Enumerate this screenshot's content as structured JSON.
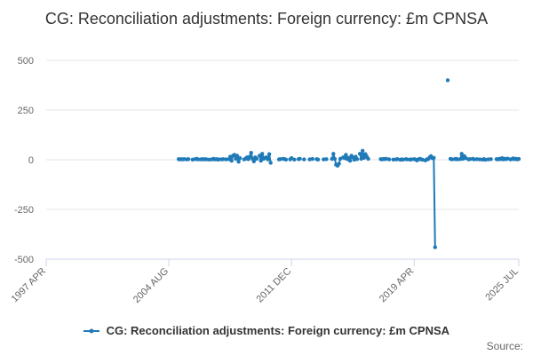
{
  "chart_data": {
    "type": "line",
    "title": "CG: Reconciliation adjustments: Foreign currency: £m CPNSA",
    "xlabel": "",
    "ylabel": "",
    "ylim": [
      -500,
      500
    ],
    "yticks": [
      500,
      250,
      0,
      -250,
      -500
    ],
    "xlim": [
      "1997-04",
      "2025-07"
    ],
    "xticks": [
      {
        "value": "1997-04",
        "label": "1997 APR"
      },
      {
        "value": "2004-08",
        "label": "2004 AUG"
      },
      {
        "value": "2011-12",
        "label": "2011 DEC"
      },
      {
        "value": "2019-04",
        "label": "2019 APR"
      },
      {
        "value": "2025-07",
        "label": "2025 JUL"
      }
    ],
    "grid": true,
    "legend_position": "bottom",
    "series": [
      {
        "name": "CG: Reconciliation adjustments: Foreign currency: £m CPNSA",
        "color": "#1f7ab8",
        "points": [
          [
            "2005-03",
            3
          ],
          [
            "2005-04",
            2
          ],
          [
            "2005-05",
            3
          ],
          [
            "2005-06",
            2
          ],
          [
            "2005-07",
            3
          ],
          [
            "2005-09",
            2
          ],
          [
            "2005-10",
            3
          ],
          [
            "2006-01",
            1
          ],
          [
            "2006-03",
            3
          ],
          [
            "2006-04",
            5
          ],
          [
            "2006-05",
            2
          ],
          [
            "2006-07",
            2
          ],
          [
            "2006-08",
            3
          ],
          [
            "2006-09",
            2
          ],
          [
            "2006-10",
            3
          ],
          [
            "2006-11",
            2
          ],
          [
            "2007-01",
            1
          ],
          [
            "2007-03",
            2
          ],
          [
            "2007-04",
            5
          ],
          [
            "2007-05",
            2
          ],
          [
            "2007-06",
            3
          ],
          [
            "2007-07",
            1
          ],
          [
            "2007-08",
            2
          ],
          [
            "2007-10",
            2
          ],
          [
            "2007-11",
            3
          ],
          [
            "2008-01",
            2
          ],
          [
            "2008-03",
            3
          ],
          [
            "2008-04",
            15
          ],
          [
            "2008-05",
            -5
          ],
          [
            "2008-06",
            20
          ],
          [
            "2008-07",
            25
          ],
          [
            "2008-08",
            5
          ],
          [
            "2008-09",
            20
          ],
          [
            "2008-10",
            -10
          ],
          [
            "2008-11",
            8
          ],
          [
            "2009-02",
            2
          ],
          [
            "2009-03",
            5
          ],
          [
            "2009-04",
            12
          ],
          [
            "2009-05",
            3
          ],
          [
            "2009-06",
            15
          ],
          [
            "2009-07",
            35
          ],
          [
            "2009-08",
            5
          ],
          [
            "2009-09",
            -8
          ],
          [
            "2009-10",
            12
          ],
          [
            "2009-11",
            5
          ],
          [
            "2010-01",
            20
          ],
          [
            "2010-02",
            -5
          ],
          [
            "2010-03",
            30
          ],
          [
            "2010-04",
            5
          ],
          [
            "2010-05",
            10
          ],
          [
            "2010-06",
            12
          ],
          [
            "2010-07",
            2
          ],
          [
            "2010-08",
            28
          ],
          [
            "2010-09",
            -15
          ],
          [
            "2011-03",
            2
          ],
          [
            "2011-04",
            3
          ],
          [
            "2011-06",
            5
          ],
          [
            "2011-07",
            3
          ],
          [
            "2011-08",
            1
          ],
          [
            "2011-11",
            2
          ],
          [
            "2011-12",
            8
          ],
          [
            "2012-02",
            1
          ],
          [
            "2012-05",
            3
          ],
          [
            "2012-06",
            5
          ],
          [
            "2012-09",
            2
          ],
          [
            "2013-01",
            2
          ],
          [
            "2013-03",
            4
          ],
          [
            "2013-06",
            3
          ],
          [
            "2013-07",
            1
          ],
          [
            "2013-11",
            2
          ],
          [
            "2014-01",
            3
          ],
          [
            "2014-05",
            4
          ],
          [
            "2014-06",
            30
          ],
          [
            "2014-07",
            5
          ],
          [
            "2014-08",
            -25
          ],
          [
            "2014-09",
            -30
          ],
          [
            "2014-10",
            -20
          ],
          [
            "2014-11",
            5
          ],
          [
            "2015-01",
            12
          ],
          [
            "2015-02",
            8
          ],
          [
            "2015-03",
            25
          ],
          [
            "2015-04",
            3
          ],
          [
            "2015-05",
            10
          ],
          [
            "2015-06",
            -5
          ],
          [
            "2015-07",
            20
          ],
          [
            "2015-08",
            12
          ],
          [
            "2015-09",
            0
          ],
          [
            "2015-10",
            15
          ],
          [
            "2015-11",
            3
          ],
          [
            "2016-01",
            30
          ],
          [
            "2016-02",
            5
          ],
          [
            "2016-03",
            45
          ],
          [
            "2016-04",
            10
          ],
          [
            "2016-05",
            28
          ],
          [
            "2016-06",
            15
          ],
          [
            "2016-07",
            5
          ],
          [
            "2017-04",
            3
          ],
          [
            "2017-05",
            2
          ],
          [
            "2017-06",
            4
          ],
          [
            "2017-07",
            3
          ],
          [
            "2017-08",
            5
          ],
          [
            "2017-10",
            2
          ],
          [
            "2018-01",
            1
          ],
          [
            "2018-03",
            2
          ],
          [
            "2018-04",
            3
          ],
          [
            "2018-06",
            0
          ],
          [
            "2018-07",
            2
          ],
          [
            "2018-08",
            1
          ],
          [
            "2018-10",
            3
          ],
          [
            "2018-11",
            2
          ],
          [
            "2019-01",
            1
          ],
          [
            "2019-02",
            2
          ],
          [
            "2019-04",
            3
          ],
          [
            "2019-05",
            1
          ],
          [
            "2019-06",
            -3
          ],
          [
            "2019-07",
            2
          ],
          [
            "2019-08",
            5
          ],
          [
            "2019-09",
            2
          ],
          [
            "2019-10",
            0
          ],
          [
            "2019-12",
            -3
          ],
          [
            "2020-01",
            2
          ],
          [
            "2020-02",
            3
          ],
          [
            "2020-03",
            12
          ],
          [
            "2020-04",
            18
          ],
          [
            "2020-05",
            8
          ],
          [
            "2020-06",
            10
          ],
          [
            "2020-07",
            -440
          ],
          [
            "2021-04",
            400
          ],
          [
            "2021-06",
            5
          ],
          [
            "2021-07",
            2
          ],
          [
            "2021-09",
            3
          ],
          [
            "2021-10",
            5
          ],
          [
            "2021-11",
            2
          ],
          [
            "2022-01",
            3
          ],
          [
            "2022-02",
            30
          ],
          [
            "2022-03",
            5
          ],
          [
            "2022-04",
            18
          ],
          [
            "2022-05",
            8
          ],
          [
            "2022-07",
            2
          ],
          [
            "2022-08",
            3
          ],
          [
            "2022-10",
            5
          ],
          [
            "2022-11",
            2
          ],
          [
            "2023-01",
            3
          ],
          [
            "2023-03",
            2
          ],
          [
            "2023-05",
            1
          ],
          [
            "2023-06",
            3
          ],
          [
            "2023-07",
            0
          ],
          [
            "2023-09",
            2
          ],
          [
            "2023-11",
            3
          ],
          [
            "2024-03",
            3
          ],
          [
            "2024-04",
            2
          ],
          [
            "2024-05",
            5
          ],
          [
            "2024-06",
            3
          ],
          [
            "2024-07",
            8
          ],
          [
            "2024-08",
            2
          ],
          [
            "2024-09",
            5
          ],
          [
            "2024-10",
            3
          ],
          [
            "2024-11",
            6
          ],
          [
            "2025-01",
            2
          ],
          [
            "2025-02",
            3
          ],
          [
            "2025-03",
            7
          ],
          [
            "2025-04",
            3
          ],
          [
            "2025-05",
            5
          ],
          [
            "2025-06",
            2
          ],
          [
            "2025-07",
            4
          ]
        ]
      }
    ]
  },
  "source_label": "Source:"
}
